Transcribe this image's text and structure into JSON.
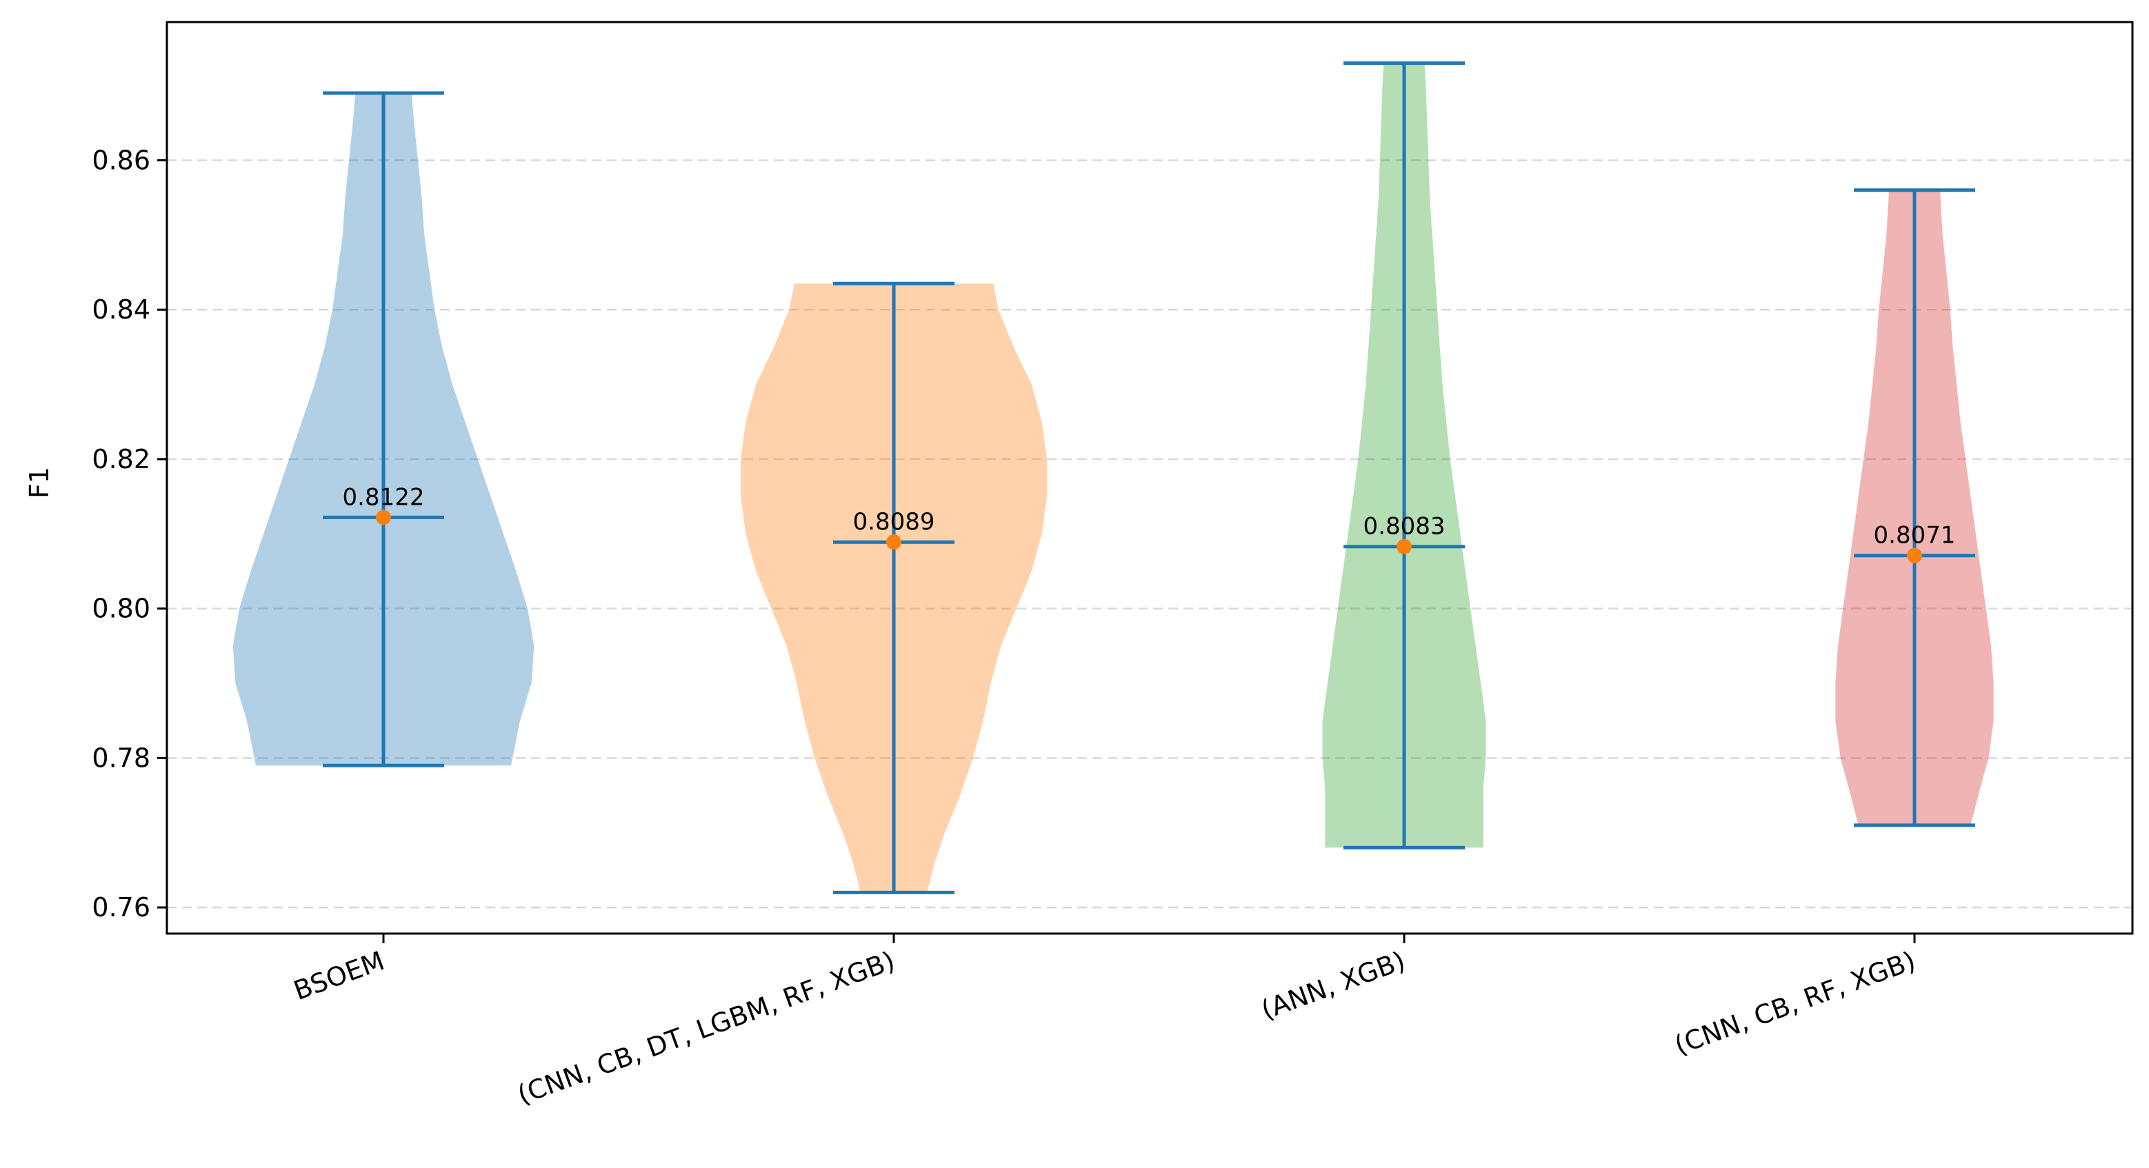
{
  "chart_data": {
    "type": "violin",
    "ylabel": "F1",
    "ylim": [
      0.7565,
      0.8785
    ],
    "yticks": [
      0.76,
      0.78,
      0.8,
      0.82,
      0.84,
      0.86
    ],
    "ytick_labels": [
      "0.76",
      "0.78",
      "0.80",
      "0.82",
      "0.84",
      "0.86"
    ],
    "grid": "horizontal dashed",
    "stat_color": "#1f77b4",
    "mean_marker_color": "#ff7f0e",
    "categories": [
      "BSOEM",
      "(CNN, CB, DT, LGBM, RF, XGB)",
      "(ANN, XGB)",
      "(CNN, CB, RF, XGB)"
    ],
    "series": [
      {
        "category": "BSOEM",
        "color": "#1f77b4",
        "min": 0.779,
        "max": 0.869,
        "mean": 0.8122,
        "mean_label": "0.8122",
        "density": [
          [
            0.779,
            0.5
          ],
          [
            0.785,
            0.535
          ],
          [
            0.79,
            0.58
          ],
          [
            0.795,
            0.59
          ],
          [
            0.8,
            0.565
          ],
          [
            0.805,
            0.52
          ],
          [
            0.81,
            0.47
          ],
          [
            0.815,
            0.42
          ],
          [
            0.82,
            0.37
          ],
          [
            0.825,
            0.32
          ],
          [
            0.83,
            0.27
          ],
          [
            0.835,
            0.23
          ],
          [
            0.84,
            0.2
          ],
          [
            0.845,
            0.18
          ],
          [
            0.85,
            0.16
          ],
          [
            0.855,
            0.15
          ],
          [
            0.86,
            0.135
          ],
          [
            0.865,
            0.12
          ],
          [
            0.869,
            0.11
          ]
        ]
      },
      {
        "category": "(CNN, CB, DT, LGBM, RF, XGB)",
        "color": "#ff7f0e",
        "min": 0.762,
        "max": 0.8435,
        "mean": 0.8089,
        "mean_label": "0.8089",
        "density": [
          [
            0.762,
            0.13
          ],
          [
            0.766,
            0.16
          ],
          [
            0.77,
            0.2
          ],
          [
            0.775,
            0.26
          ],
          [
            0.78,
            0.31
          ],
          [
            0.785,
            0.35
          ],
          [
            0.79,
            0.38
          ],
          [
            0.795,
            0.42
          ],
          [
            0.8,
            0.48
          ],
          [
            0.805,
            0.54
          ],
          [
            0.81,
            0.58
          ],
          [
            0.815,
            0.6
          ],
          [
            0.82,
            0.6
          ],
          [
            0.825,
            0.58
          ],
          [
            0.83,
            0.54
          ],
          [
            0.835,
            0.47
          ],
          [
            0.84,
            0.41
          ],
          [
            0.8435,
            0.39
          ]
        ]
      },
      {
        "category": "(ANN, XGB)",
        "color": "#2ca02c",
        "min": 0.768,
        "max": 0.873,
        "mean": 0.8083,
        "mean_label": "0.8083",
        "density": [
          [
            0.768,
            0.31
          ],
          [
            0.772,
            0.31
          ],
          [
            0.776,
            0.31
          ],
          [
            0.78,
            0.32
          ],
          [
            0.785,
            0.32
          ],
          [
            0.79,
            0.3
          ],
          [
            0.795,
            0.28
          ],
          [
            0.8,
            0.26
          ],
          [
            0.805,
            0.24
          ],
          [
            0.81,
            0.22
          ],
          [
            0.815,
            0.2
          ],
          [
            0.82,
            0.18
          ],
          [
            0.825,
            0.165
          ],
          [
            0.83,
            0.15
          ],
          [
            0.835,
            0.14
          ],
          [
            0.84,
            0.13
          ],
          [
            0.845,
            0.12
          ],
          [
            0.85,
            0.11
          ],
          [
            0.855,
            0.1
          ],
          [
            0.86,
            0.095
          ],
          [
            0.865,
            0.09
          ],
          [
            0.87,
            0.085
          ],
          [
            0.873,
            0.08
          ]
        ]
      },
      {
        "category": "(CNN, CB, RF, XGB)",
        "color": "#d62728",
        "min": 0.771,
        "max": 0.856,
        "mean": 0.8071,
        "mean_label": "0.8071",
        "density": [
          [
            0.771,
            0.22
          ],
          [
            0.775,
            0.25
          ],
          [
            0.78,
            0.29
          ],
          [
            0.785,
            0.31
          ],
          [
            0.79,
            0.31
          ],
          [
            0.795,
            0.3
          ],
          [
            0.8,
            0.28
          ],
          [
            0.805,
            0.26
          ],
          [
            0.81,
            0.24
          ],
          [
            0.815,
            0.22
          ],
          [
            0.82,
            0.2
          ],
          [
            0.825,
            0.18
          ],
          [
            0.83,
            0.165
          ],
          [
            0.835,
            0.15
          ],
          [
            0.84,
            0.14
          ],
          [
            0.845,
            0.125
          ],
          [
            0.85,
            0.11
          ],
          [
            0.856,
            0.1
          ]
        ]
      }
    ]
  }
}
